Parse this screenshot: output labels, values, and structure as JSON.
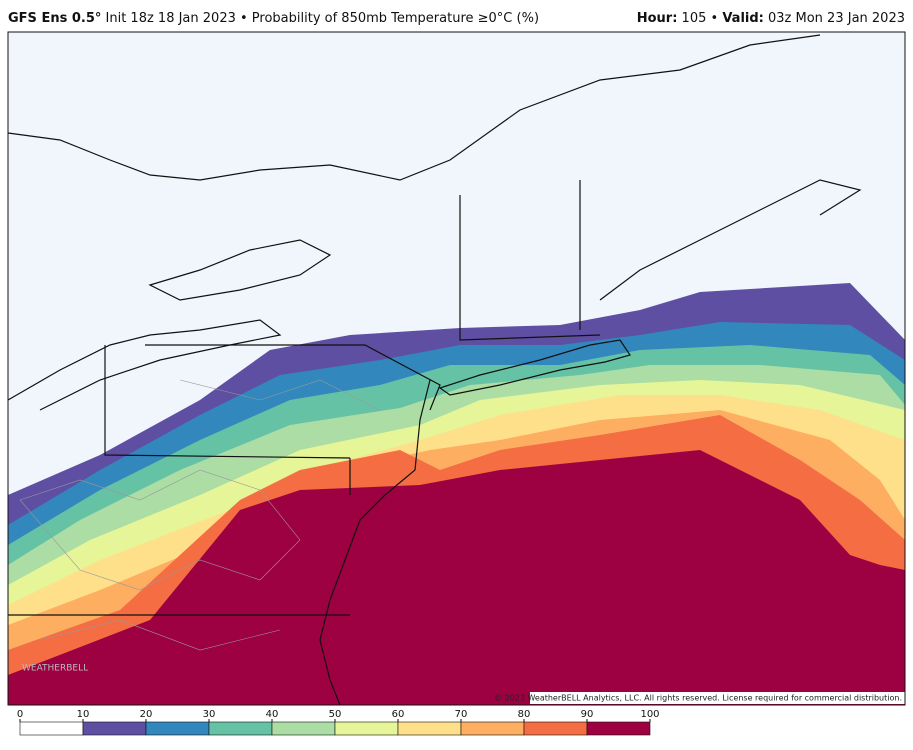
{
  "header": {
    "model": "GFS Ens 0.5°",
    "subtitle": "Init 18z 18 Jan 2023 • Probability of 850mb Temperature ≥0°C (%)",
    "hour_label": "Hour:",
    "hour": 105,
    "separator": "•",
    "valid_label": "Valid:",
    "valid": "03z Mon 23 Jan 2023"
  },
  "watermark": "WEATHERBELL",
  "credit": "© 2023 WeatherBELL Analytics, LLC. All rights reserved. License required for commercial distribution.",
  "colorbar": {
    "ticks": [
      0,
      10,
      20,
      30,
      40,
      50,
      60,
      70,
      80,
      90,
      100
    ],
    "colors": [
      "#ffffff",
      "#5e4fa2",
      "#3288bd",
      "#66c2a5",
      "#abdda4",
      "#e6f598",
      "#fee08b",
      "#fdae61",
      "#f46d43",
      "#9e0142"
    ]
  }
}
